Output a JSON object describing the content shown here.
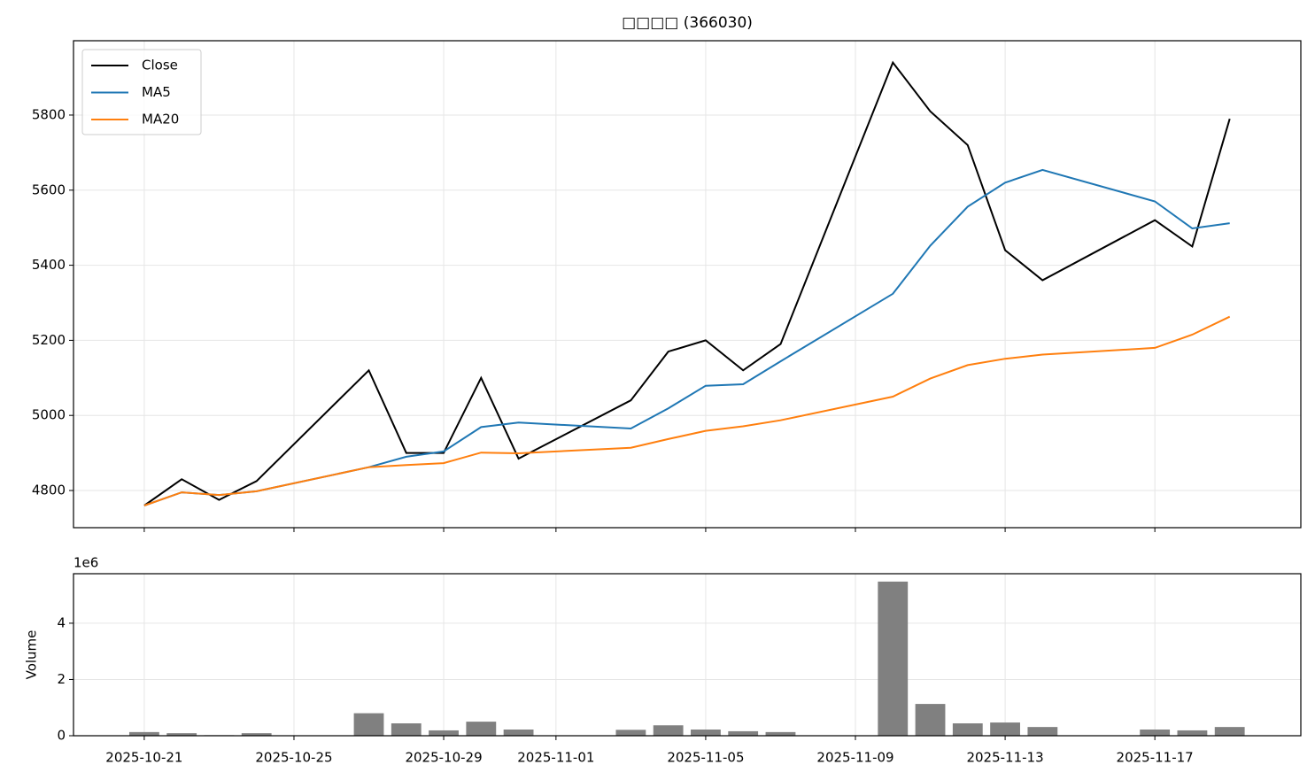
{
  "chart_data": [
    {
      "type": "line",
      "title": "□□□□ (366030)",
      "x": [
        "2025-10-21",
        "2025-10-22",
        "2025-10-23",
        "2025-10-24",
        "2025-10-27",
        "2025-10-28",
        "2025-10-29",
        "2025-10-30",
        "2025-10-31",
        "2025-11-03",
        "2025-11-04",
        "2025-11-05",
        "2025-11-06",
        "2025-11-07",
        "2025-11-10",
        "2025-11-11",
        "2025-11-12",
        "2025-11-13",
        "2025-11-14",
        "2025-11-17",
        "2025-11-18",
        "2025-11-19"
      ],
      "series": [
        {
          "name": "Close",
          "color": "#000000",
          "values": [
            4760,
            4830,
            4775,
            4825,
            5120,
            4900,
            4900,
            5100,
            4885,
            5040,
            5170,
            5200,
            5120,
            5190,
            5940,
            5810,
            5720,
            5440,
            5360,
            5520,
            5450,
            5790
          ]
        },
        {
          "name": "MA5",
          "color": "#1f77b4",
          "values": [
            4760,
            4795,
            4788,
            4798,
            4862,
            4890,
            4904,
            4969,
            4981,
            4965,
            5019,
            5079,
            5083,
            5144,
            5324,
            5452,
            5556,
            5620,
            5654,
            5570,
            5498,
            5512
          ]
        },
        {
          "name": "MA20",
          "color": "#ff7f0e",
          "values": [
            4760,
            4795,
            4788,
            4798,
            4862,
            4868,
            4873,
            4901,
            4899,
            4914,
            4937,
            4959,
            4971,
            4987,
            5050,
            5098,
            5134,
            5151,
            5162,
            5180,
            5215,
            5263
          ]
        }
      ],
      "xlim": [
        "2025-10-19T02:38Z",
        "2025-11-20T21:36Z"
      ],
      "xticks": [
        "2025-10-21",
        "2025-10-25",
        "2025-10-29",
        "2025-11-01",
        "2025-11-05",
        "2025-11-09",
        "2025-11-13",
        "2025-11-17"
      ],
      "ylim": [
        4701,
        5998
      ],
      "yticks": [
        4800,
        5000,
        5200,
        5400,
        5600,
        5800
      ],
      "grid": true,
      "legend": "upper left"
    },
    {
      "type": "bar",
      "ylabel": "Volume",
      "offset_label": "1e6",
      "color": "#808080",
      "x": [
        "2025-10-21",
        "2025-10-22",
        "2025-10-23",
        "2025-10-24",
        "2025-10-27",
        "2025-10-28",
        "2025-10-29",
        "2025-10-30",
        "2025-10-31",
        "2025-11-03",
        "2025-11-04",
        "2025-11-05",
        "2025-11-06",
        "2025-11-07",
        "2025-11-10",
        "2025-11-11",
        "2025-11-12",
        "2025-11-13",
        "2025-11-14",
        "2025-11-17",
        "2025-11-18",
        "2025-11-19"
      ],
      "values": [
        130000,
        90000,
        20000,
        90000,
        800000,
        440000,
        190000,
        500000,
        220000,
        210000,
        370000,
        220000,
        160000,
        130000,
        5480000,
        1130000,
        440000,
        470000,
        310000,
        220000,
        190000,
        310000
      ],
      "xlim": [
        "2025-10-19T02:38Z",
        "2025-11-20T21:36Z"
      ],
      "xticks": [
        "2025-10-21",
        "2025-10-25",
        "2025-10-29",
        "2025-11-01",
        "2025-11-05",
        "2025-11-09",
        "2025-11-13",
        "2025-11-17"
      ],
      "ylim": [
        0,
        5760000
      ],
      "yticks": [
        0,
        {
          "value": 2000000,
          "label": "2"
        },
        {
          "value": 4000000,
          "label": "4"
        }
      ],
      "grid": true
    }
  ]
}
